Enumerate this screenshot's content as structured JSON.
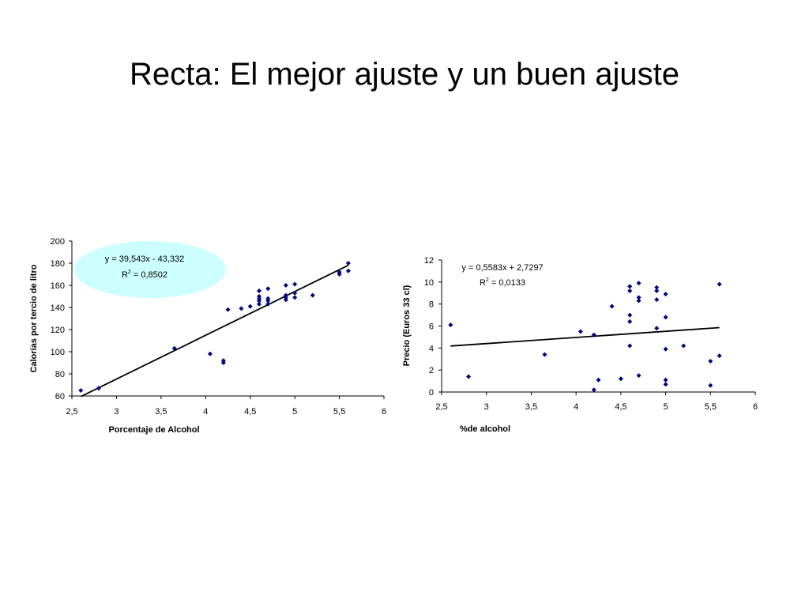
{
  "slide": {
    "title": "Recta: El mejor ajuste y un buen ajuste"
  },
  "chart_data": [
    {
      "type": "scatter",
      "title": "",
      "xlabel": "Porcentaje de Alcohol",
      "ylabel": "Calorías por tercio de litro",
      "xlim": [
        2.5,
        6
      ],
      "ylim": [
        60,
        200
      ],
      "xticks": [
        "2,5",
        "3",
        "3,5",
        "4",
        "4,5",
        "5",
        "5,5",
        "6"
      ],
      "yticks": [
        "60",
        "80",
        "100",
        "120",
        "140",
        "160",
        "180",
        "200"
      ],
      "points": [
        [
          2.6,
          65
        ],
        [
          2.8,
          67
        ],
        [
          3.65,
          103
        ],
        [
          4.05,
          98
        ],
        [
          4.2,
          92
        ],
        [
          4.2,
          90
        ],
        [
          4.25,
          138
        ],
        [
          4.4,
          139
        ],
        [
          4.5,
          141
        ],
        [
          4.6,
          155
        ],
        [
          4.6,
          150
        ],
        [
          4.6,
          148
        ],
        [
          4.6,
          146
        ],
        [
          4.6,
          143
        ],
        [
          4.7,
          157
        ],
        [
          4.7,
          148
        ],
        [
          4.7,
          146
        ],
        [
          4.7,
          143
        ],
        [
          4.9,
          160
        ],
        [
          4.9,
          151
        ],
        [
          4.9,
          149
        ],
        [
          4.9,
          147
        ],
        [
          5.0,
          161
        ],
        [
          5.0,
          153
        ],
        [
          5.0,
          149
        ],
        [
          5.2,
          151
        ],
        [
          5.5,
          172
        ],
        [
          5.5,
          170
        ],
        [
          5.6,
          180
        ],
        [
          5.6,
          173
        ]
      ],
      "trendline": {
        "slope": 39.543,
        "intercept": -43.332,
        "x_range": [
          2.6,
          5.6
        ]
      },
      "equation_line1": "y = 39,543x - 43,332",
      "r2_prefix": "R",
      "r2_sup": "2",
      "r2_value": " = 0,8502",
      "equation_bubble_color": "#ccffff",
      "marker_color": "#000080"
    },
    {
      "type": "scatter",
      "title": "",
      "xlabel": "%de alcohol",
      "ylabel": "Precio (Euros 33 cl)",
      "xlim": [
        2.5,
        6
      ],
      "ylim": [
        0,
        12
      ],
      "xticks": [
        "2,5",
        "3",
        "3,5",
        "4",
        "4,5",
        "5",
        "5,5",
        "6"
      ],
      "yticks": [
        "0",
        "2",
        "4",
        "6",
        "8",
        "10",
        "12"
      ],
      "points": [
        [
          2.6,
          6.1
        ],
        [
          2.8,
          1.4
        ],
        [
          3.65,
          3.4
        ],
        [
          4.05,
          5.5
        ],
        [
          4.2,
          5.2
        ],
        [
          4.2,
          0.2
        ],
        [
          4.25,
          1.1
        ],
        [
          4.4,
          7.8
        ],
        [
          4.5,
          1.2
        ],
        [
          4.6,
          9.6
        ],
        [
          4.6,
          9.2
        ],
        [
          4.6,
          7.0
        ],
        [
          4.6,
          6.4
        ],
        [
          4.6,
          4.2
        ],
        [
          4.7,
          9.9
        ],
        [
          4.7,
          8.6
        ],
        [
          4.7,
          8.3
        ],
        [
          4.7,
          1.5
        ],
        [
          4.9,
          9.5
        ],
        [
          4.9,
          9.2
        ],
        [
          4.9,
          8.4
        ],
        [
          4.9,
          5.8
        ],
        [
          5.0,
          8.9
        ],
        [
          5.0,
          6.8
        ],
        [
          5.0,
          3.9
        ],
        [
          5.0,
          1.1
        ],
        [
          5.0,
          0.7
        ],
        [
          5.2,
          4.2
        ],
        [
          5.5,
          2.8
        ],
        [
          5.5,
          0.6
        ],
        [
          5.6,
          9.8
        ],
        [
          5.6,
          3.3
        ]
      ],
      "trendline": {
        "slope": 0.5583,
        "intercept": 2.7297,
        "x_range": [
          2.6,
          5.6
        ]
      },
      "equation_line1": "y = 0,5583x + 2,7297",
      "r2_prefix": "R",
      "r2_sup": "2",
      "r2_value": " = 0,0133",
      "marker_color": "#000080"
    }
  ]
}
